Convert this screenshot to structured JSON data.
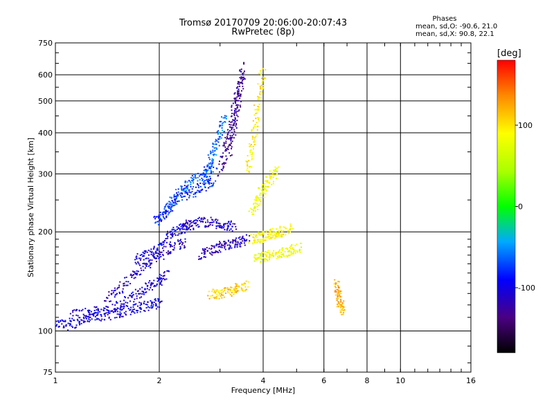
{
  "title_line1": "Tromsø 20170709 20:06:00-20:07:43",
  "title_line2": "RwPretec (8p)",
  "stats": {
    "heading": "Phases",
    "line_o": "mean, sd,O: -90.6, 21.0",
    "line_x": "mean, sd,X:  90.8, 22.1"
  },
  "colorbar": {
    "label": "[deg]",
    "range": [
      -180,
      180
    ],
    "ticks": [
      {
        "value": 100,
        "label": "100"
      },
      {
        "value": 0,
        "label": "0"
      },
      {
        "value": -100,
        "label": "-100"
      }
    ]
  },
  "chart_data": {
    "type": "scatter",
    "xscale": "log",
    "yscale": "log",
    "xlabel": "Frequency [MHz]",
    "ylabel": "Stationary phase Virtual Height [km]",
    "xlim": [
      1,
      16
    ],
    "ylim": [
      75,
      750
    ],
    "xticks": [
      {
        "value": 1,
        "label": "1"
      },
      {
        "value": 2,
        "label": "2"
      },
      {
        "value": 4,
        "label": "4"
      },
      {
        "value": 6,
        "label": "6"
      },
      {
        "value": 8,
        "label": "8"
      },
      {
        "value": 10,
        "label": "10"
      },
      {
        "value": 16,
        "label": "16"
      }
    ],
    "yticks": [
      {
        "value": 75,
        "label": "75"
      },
      {
        "value": 100,
        "label": "100"
      },
      {
        "value": 200,
        "label": "200"
      },
      {
        "value": 300,
        "label": "300"
      },
      {
        "value": 400,
        "label": "400"
      },
      {
        "value": 500,
        "label": "500"
      },
      {
        "value": 600,
        "label": "600"
      },
      {
        "value": 750,
        "label": "750"
      }
    ],
    "grid": true,
    "color_encoding": "phase [deg]",
    "traces": [
      {
        "f": [
          1.0,
          1.1,
          1.2,
          1.3,
          1.45,
          1.6,
          1.75,
          1.9,
          2.0
        ],
        "h": [
          105,
          104,
          108,
          110,
          112,
          115,
          118,
          120,
          122
        ],
        "phase": -100
      },
      {
        "f": [
          1.1,
          1.25,
          1.4,
          1.55,
          1.7,
          1.85,
          2.0,
          2.1
        ],
        "h": [
          112,
          114,
          116,
          120,
          128,
          135,
          142,
          150
        ],
        "phase": -105
      },
      {
        "f": [
          1.4,
          1.55,
          1.7,
          1.85,
          2.0,
          2.2,
          2.4
        ],
        "h": [
          125,
          135,
          150,
          160,
          170,
          180,
          185
        ],
        "phase": -110
      },
      {
        "f": [
          1.7,
          1.85,
          2.0,
          2.15,
          2.3,
          2.5
        ],
        "h": [
          165,
          170,
          180,
          195,
          205,
          210
        ],
        "phase": -100
      },
      {
        "f": [
          1.95,
          2.05,
          2.15,
          2.3,
          2.5,
          2.7,
          2.9
        ],
        "h": [
          215,
          225,
          240,
          255,
          265,
          275,
          285
        ],
        "phase": -85
      },
      {
        "f": [
          2.1,
          2.2,
          2.35,
          2.5,
          2.7,
          2.9
        ],
        "h": [
          230,
          250,
          270,
          285,
          300,
          320
        ],
        "phase": -70
      },
      {
        "f": [
          2.3,
          2.5,
          2.7,
          2.9,
          3.1,
          3.3
        ],
        "h": [
          205,
          212,
          215,
          212,
          210,
          208
        ],
        "phase": -110
      },
      {
        "f": [
          2.6,
          2.8,
          3.0,
          3.2,
          3.4,
          3.6
        ],
        "h": [
          170,
          175,
          180,
          183,
          186,
          190
        ],
        "phase": -115
      },
      {
        "f": [
          2.7,
          2.8,
          2.9,
          3.0,
          3.1
        ],
        "h": [
          280,
          320,
          360,
          400,
          450
        ],
        "phase": -60
      },
      {
        "f": [
          3.0,
          3.1,
          3.2,
          3.3,
          3.4,
          3.5
        ],
        "h": [
          300,
          350,
          400,
          470,
          540,
          610
        ],
        "phase": -125
      },
      {
        "f": [
          3.2,
          3.3,
          3.4,
          3.5
        ],
        "h": [
          350,
          420,
          500,
          640
        ],
        "phase": -130
      },
      {
        "f": [
          3.6,
          3.7,
          3.8,
          3.9,
          4.0
        ],
        "h": [
          300,
          360,
          430,
          520,
          620
        ],
        "phase": 95
      },
      {
        "f": [
          3.7,
          3.85,
          4.0,
          4.2,
          4.4
        ],
        "h": [
          230,
          250,
          270,
          290,
          310
        ],
        "phase": 85
      },
      {
        "f": [
          3.7,
          3.9,
          4.1,
          4.3,
          4.5,
          4.8
        ],
        "h": [
          190,
          192,
          195,
          198,
          200,
          205
        ],
        "phase": 90
      },
      {
        "f": [
          3.8,
          4.0,
          4.2,
          4.5,
          4.8,
          5.1
        ],
        "h": [
          165,
          168,
          170,
          172,
          175,
          180
        ],
        "phase": 80
      },
      {
        "f": [
          2.8,
          3.0,
          3.2,
          3.4,
          3.6
        ],
        "h": [
          130,
          128,
          132,
          135,
          138
        ],
        "phase": 110
      },
      {
        "f": [
          6.5,
          6.6,
          6.7,
          6.8
        ],
        "h": [
          140,
          130,
          120,
          115
        ],
        "phase": 120
      }
    ]
  }
}
